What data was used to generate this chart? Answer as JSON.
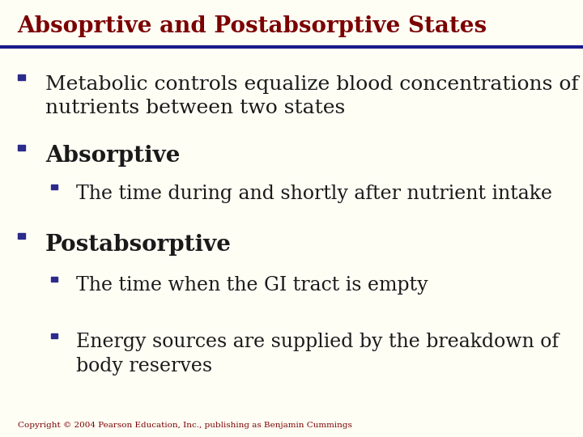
{
  "title": "Absoprtive and Postabsorptive States",
  "title_color": "#7B0000",
  "title_fontsize": 20,
  "title_bold": true,
  "line_color": "#1a1a8c",
  "bg_color": "#FFFEF5",
  "bullet_color": "#2b2b8c",
  "text_color": "#1a1a1a",
  "copyright": "Copyright © 2004 Pearson Education, Inc., publishing as Benjamin Cummings",
  "copyright_color": "#7B0000",
  "bullets": [
    {
      "level": 1,
      "text": "Metabolic controls equalize blood concentrations of\nnutrients between two states",
      "fontsize": 18,
      "bold": false
    },
    {
      "level": 1,
      "text": "Absorptive",
      "fontsize": 20,
      "bold": true
    },
    {
      "level": 2,
      "text": "The time during and shortly after nutrient intake",
      "fontsize": 17,
      "bold": false
    },
    {
      "level": 1,
      "text": "Postabsorptive",
      "fontsize": 20,
      "bold": true
    },
    {
      "level": 2,
      "text": "The time when the GI tract is empty",
      "fontsize": 17,
      "bold": false
    },
    {
      "level": 2,
      "text": "Energy sources are supplied by the breakdown of\nbody reserves",
      "fontsize": 17,
      "bold": false
    }
  ]
}
